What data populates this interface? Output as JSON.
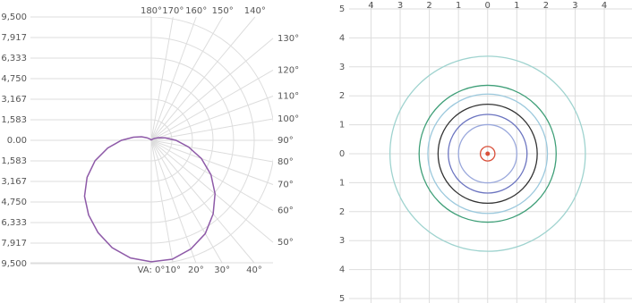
{
  "chart_data": [
    {
      "type": "polar",
      "rlim": [
        0,
        9500
      ],
      "rticks": [
        {
          "value": 0,
          "label": "0.00"
        },
        {
          "value": 1583,
          "label": "1,583"
        },
        {
          "value": 3167,
          "label": "3,167"
        },
        {
          "value": 4750,
          "label": "4,750"
        },
        {
          "value": 6333,
          "label": "6,333"
        },
        {
          "value": 7917,
          "label": "7,917"
        },
        {
          "value": 9500,
          "label": "9,500"
        }
      ],
      "angle_ticks": [
        {
          "value": 0,
          "label": "VA: 0°"
        },
        {
          "value": 10,
          "label": "10°"
        },
        {
          "value": 20,
          "label": "20°"
        },
        {
          "value": 30,
          "label": "30°"
        },
        {
          "value": 40,
          "label": "40°"
        },
        {
          "value": 50,
          "label": "50°"
        },
        {
          "value": 60,
          "label": "60°"
        },
        {
          "value": 70,
          "label": "70°"
        },
        {
          "value": 80,
          "label": "80°"
        },
        {
          "value": 90,
          "label": "90°"
        },
        {
          "value": 100,
          "label": "100°"
        },
        {
          "value": 110,
          "label": "110°"
        },
        {
          "value": 120,
          "label": "120°"
        },
        {
          "value": 130,
          "label": "130°"
        },
        {
          "value": 140,
          "label": "140°"
        },
        {
          "value": 150,
          "label": "150°"
        },
        {
          "value": 160,
          "label": "160°"
        },
        {
          "value": 170,
          "label": "170°"
        },
        {
          "value": 180,
          "label": "180°"
        }
      ],
      "x": [
        -180,
        -170,
        -160,
        -150,
        -140,
        -130,
        -120,
        -110,
        -100,
        -90,
        -80,
        -70,
        -60,
        -50,
        -40,
        -30,
        -20,
        -10,
        0,
        10,
        20,
        30,
        40,
        50,
        60,
        70,
        80,
        90,
        100,
        110,
        120,
        130,
        140,
        150,
        160,
        170,
        180
      ],
      "values": [
        0,
        10,
        25,
        50,
        100,
        200,
        400,
        800,
        1400,
        2300,
        3400,
        4600,
        5700,
        6700,
        7500,
        8200,
        8800,
        9200,
        9350,
        9300,
        8900,
        8300,
        7400,
        6400,
        5300,
        4100,
        2900,
        1900,
        1100,
        600,
        300,
        150,
        80,
        40,
        20,
        10,
        0
      ],
      "color": "#8e5aa8"
    },
    {
      "type": "contour",
      "xlim": [
        -4.75,
        4.95
      ],
      "ylim": [
        -5,
        5
      ],
      "xticks": [
        {
          "value": -4,
          "label": "4"
        },
        {
          "value": -3,
          "label": "3"
        },
        {
          "value": -2,
          "label": "2"
        },
        {
          "value": -1,
          "label": "1"
        },
        0,
        1,
        2,
        3,
        4
      ],
      "yticks": [
        5,
        4,
        3,
        2,
        1,
        0,
        {
          "value": -1,
          "label": "1"
        },
        {
          "value": -2,
          "label": "2"
        },
        {
          "value": -3,
          "label": "3"
        },
        {
          "value": -4,
          "label": "4"
        },
        {
          "value": -5,
          "label": "5"
        }
      ],
      "contours": [
        {
          "radius": 3.35,
          "color": "#9fd3cf"
        },
        {
          "radius": 2.35,
          "color": "#3f9f78"
        },
        {
          "radius": 2.05,
          "color": "#9cc9dd"
        },
        {
          "radius": 1.7,
          "color": "#333333"
        },
        {
          "radius": 1.35,
          "color": "#6b74c0"
        },
        {
          "radius": 1.0,
          "color": "#9aa8dc"
        },
        {
          "radius": 0.25,
          "color": "#d9503a"
        }
      ],
      "center": [
        0,
        0
      ]
    }
  ]
}
